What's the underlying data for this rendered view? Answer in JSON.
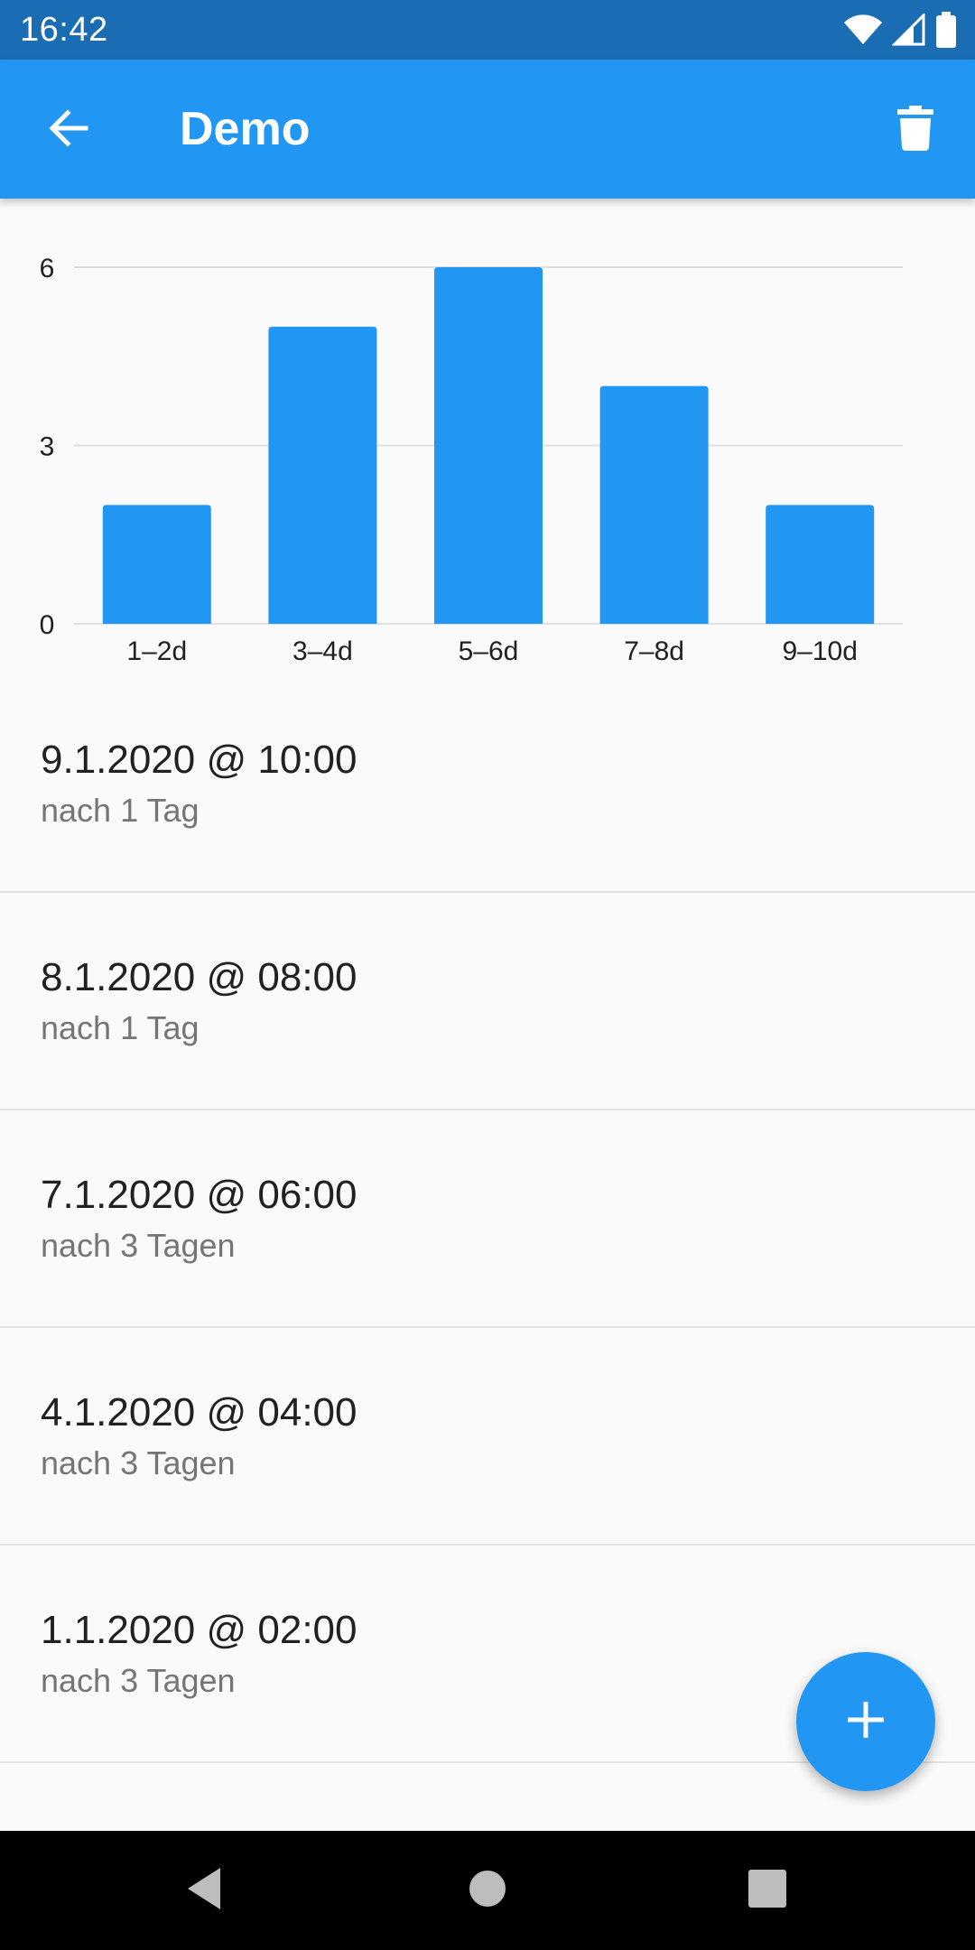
{
  "status_bar": {
    "time": "16:42",
    "icons": [
      "wifi-icon",
      "cell-signal-icon",
      "battery-icon"
    ]
  },
  "app_bar": {
    "title": "Demo",
    "back_icon": "arrow-back-icon",
    "delete_icon": "trash-icon"
  },
  "colors": {
    "primary": "#2196f3",
    "status_bar": "#1b6db3",
    "bar": "#2196f3",
    "grid": "#e0e0e0",
    "background": "#fafafa"
  },
  "chart_data": {
    "type": "bar",
    "categories": [
      "1–2d",
      "3–4d",
      "5–6d",
      "7–8d",
      "9–10d"
    ],
    "values": [
      2,
      5,
      6,
      4,
      2
    ],
    "yticks": [
      "0",
      "3",
      "6"
    ],
    "ylim": [
      0,
      6
    ],
    "grid": true
  },
  "entries": [
    {
      "date": "9.1.2020 @ 10:00",
      "interval": "nach 1 Tag"
    },
    {
      "date": "8.1.2020 @ 08:00",
      "interval": "nach 1 Tag"
    },
    {
      "date": "7.1.2020 @ 06:00",
      "interval": "nach 3 Tagen"
    },
    {
      "date": "4.1.2020 @ 04:00",
      "interval": "nach 3 Tagen"
    },
    {
      "date": "1.1.2020 @ 02:00",
      "interval": "nach 3 Tagen"
    }
  ],
  "fab": {
    "icon": "plus-icon"
  },
  "nav_bar": {
    "icons": [
      "nav-back-icon",
      "nav-home-icon",
      "nav-recents-icon"
    ]
  }
}
